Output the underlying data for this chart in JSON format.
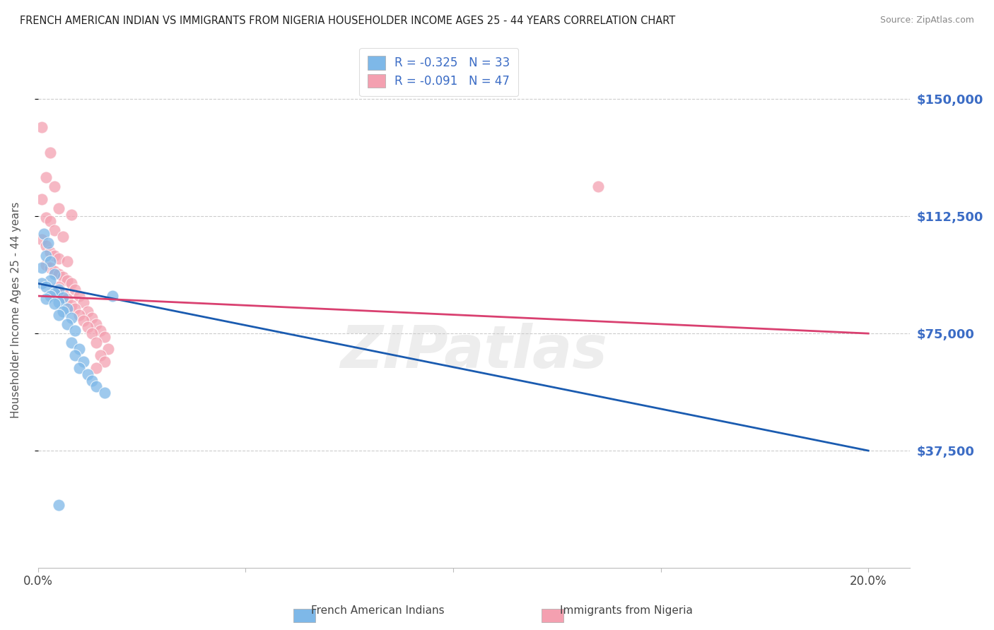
{
  "title": "FRENCH AMERICAN INDIAN VS IMMIGRANTS FROM NIGERIA HOUSEHOLDER INCOME AGES 25 - 44 YEARS CORRELATION CHART",
  "source": "Source: ZipAtlas.com",
  "ylabel": "Householder Income Ages 25 - 44 years",
  "ytick_labels": [
    "$37,500",
    "$75,000",
    "$112,500",
    "$150,000"
  ],
  "ytick_values": [
    37500,
    75000,
    112500,
    150000
  ],
  "ylim": [
    0,
    165000
  ],
  "xlim": [
    0.0,
    0.21
  ],
  "r_blue": -0.325,
  "n_blue": 33,
  "r_pink": -0.091,
  "n_pink": 47,
  "legend_label_blue": "French American Indians",
  "legend_label_pink": "Immigrants from Nigeria",
  "watermark": "ZIPatlas",
  "blue_scatter": [
    [
      0.0015,
      107000
    ],
    [
      0.0025,
      104000
    ],
    [
      0.002,
      100000
    ],
    [
      0.003,
      98000
    ],
    [
      0.001,
      96000
    ],
    [
      0.004,
      94000
    ],
    [
      0.003,
      92000
    ],
    [
      0.001,
      91000
    ],
    [
      0.002,
      90000
    ],
    [
      0.005,
      89000
    ],
    [
      0.004,
      88000
    ],
    [
      0.003,
      87000
    ],
    [
      0.006,
      86500
    ],
    [
      0.002,
      86000
    ],
    [
      0.005,
      85000
    ],
    [
      0.004,
      84500
    ],
    [
      0.007,
      83000
    ],
    [
      0.006,
      82000
    ],
    [
      0.005,
      81000
    ],
    [
      0.008,
      80000
    ],
    [
      0.007,
      78000
    ],
    [
      0.009,
      76000
    ],
    [
      0.008,
      72000
    ],
    [
      0.01,
      70000
    ],
    [
      0.009,
      68000
    ],
    [
      0.011,
      66000
    ],
    [
      0.01,
      64000
    ],
    [
      0.012,
      62000
    ],
    [
      0.013,
      60000
    ],
    [
      0.014,
      58000
    ],
    [
      0.016,
      56000
    ],
    [
      0.018,
      87000
    ],
    [
      0.005,
      20000
    ]
  ],
  "pink_scatter": [
    [
      0.001,
      141000
    ],
    [
      0.003,
      133000
    ],
    [
      0.002,
      125000
    ],
    [
      0.004,
      122000
    ],
    [
      0.001,
      118000
    ],
    [
      0.005,
      115000
    ],
    [
      0.008,
      113000
    ],
    [
      0.002,
      112000
    ],
    [
      0.003,
      111000
    ],
    [
      0.004,
      108000
    ],
    [
      0.006,
      106000
    ],
    [
      0.001,
      105000
    ],
    [
      0.002,
      103000
    ],
    [
      0.003,
      101000
    ],
    [
      0.004,
      100000
    ],
    [
      0.005,
      99000
    ],
    [
      0.007,
      98000
    ],
    [
      0.002,
      97000
    ],
    [
      0.003,
      96000
    ],
    [
      0.004,
      95000
    ],
    [
      0.005,
      94000
    ],
    [
      0.006,
      93000
    ],
    [
      0.007,
      92000
    ],
    [
      0.008,
      91000
    ],
    [
      0.005,
      90000
    ],
    [
      0.009,
      89000
    ],
    [
      0.006,
      88000
    ],
    [
      0.01,
      87000
    ],
    [
      0.007,
      86000
    ],
    [
      0.011,
      85000
    ],
    [
      0.008,
      84000
    ],
    [
      0.009,
      83000
    ],
    [
      0.012,
      82000
    ],
    [
      0.01,
      81000
    ],
    [
      0.013,
      80000
    ],
    [
      0.011,
      79000
    ],
    [
      0.014,
      78000
    ],
    [
      0.012,
      77000
    ],
    [
      0.015,
      76000
    ],
    [
      0.013,
      75000
    ],
    [
      0.016,
      74000
    ],
    [
      0.014,
      72000
    ],
    [
      0.017,
      70000
    ],
    [
      0.015,
      68000
    ],
    [
      0.016,
      66000
    ],
    [
      0.135,
      122000
    ],
    [
      0.014,
      64000
    ]
  ],
  "blue_line_x": [
    0.0,
    0.2
  ],
  "blue_line_y": [
    91000,
    37500
  ],
  "pink_line_x": [
    0.0,
    0.2
  ],
  "pink_line_y": [
    87000,
    75000
  ],
  "color_blue": "#7EB8E8",
  "color_pink": "#F4A0B0",
  "color_blue_line": "#1A5BB0",
  "color_pink_line": "#D94070",
  "grid_color": "#CCCCCC",
  "right_tick_color": "#3B6CC5"
}
